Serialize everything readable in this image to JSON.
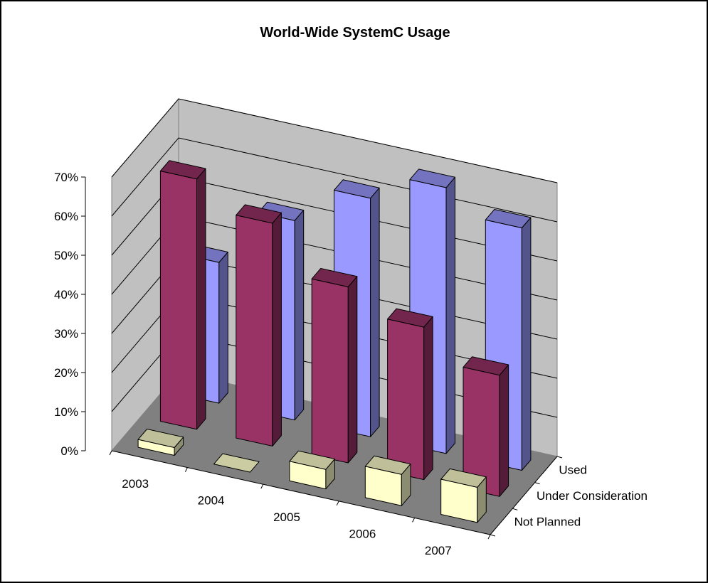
{
  "chart_data": {
    "type": "bar",
    "title": "World-Wide SystemC Usage",
    "categories": [
      "2003",
      "2004",
      "2005",
      "2006",
      "2007"
    ],
    "series": [
      {
        "name": "Not Planned",
        "values": [
          2,
          0,
          5,
          8,
          9
        ],
        "color": "#FFFFCC"
      },
      {
        "name": "Under Consideration",
        "values": [
          64,
          57,
          45,
          39,
          31
        ],
        "color": "#993366"
      },
      {
        "name": "Used",
        "values": [
          36,
          51,
          61,
          68,
          62
        ],
        "color": "#9999FF"
      }
    ],
    "yticks": [
      "0%",
      "10%",
      "20%",
      "30%",
      "40%",
      "50%",
      "60%",
      "70%"
    ],
    "ylim": [
      0,
      70
    ],
    "grid": true,
    "legend": "none"
  }
}
